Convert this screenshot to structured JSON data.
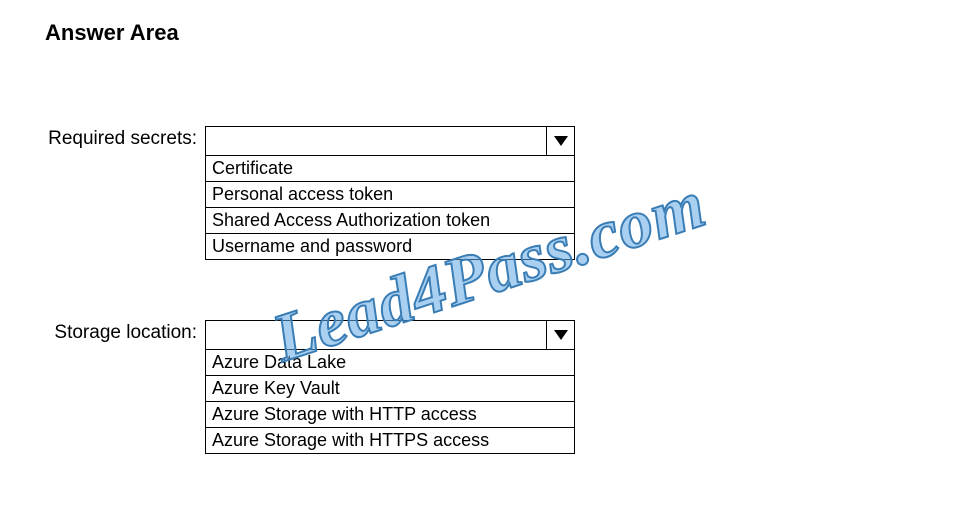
{
  "title": "Answer Area",
  "fields": [
    {
      "label": "Required secrets:",
      "options": [
        "Certificate",
        "Personal access token",
        "Shared Access Authorization token",
        "Username and password"
      ]
    },
    {
      "label": "Storage location:",
      "options": [
        "Azure Data Lake",
        "Azure Key Vault",
        "Azure Storage with HTTP access",
        "Azure Storage with HTTPS access"
      ]
    }
  ],
  "watermark_text": "Lead4Pass.com",
  "colors": {
    "background": "#ffffff",
    "text": "#000000",
    "border": "#000000",
    "watermark": "rgba(100,170,230,0.55)"
  }
}
